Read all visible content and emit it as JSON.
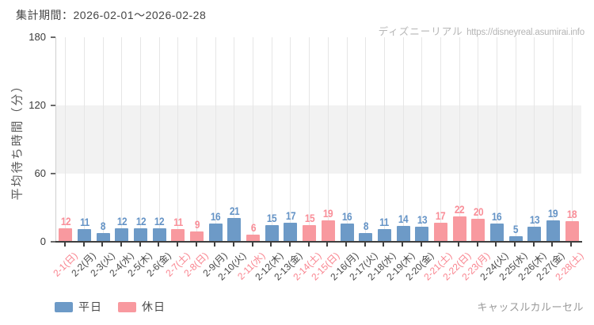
{
  "header": {
    "period_label": "集計期間：2026-02-01～2026-02-28",
    "watermark": {
      "site": "ディズニーリアル",
      "url": "https://disneyreal.asumirai.info"
    }
  },
  "chart_data": {
    "type": "bar",
    "title": "",
    "xlabel": "",
    "ylabel": "平均待ち時間（分）",
    "ylim": [
      0,
      180
    ],
    "yticks": [
      0,
      60,
      120,
      180
    ],
    "shaded_band": [
      60,
      120
    ],
    "grid": true,
    "legend_position": "bottom-left",
    "categories": [
      "2-1(日)",
      "2-2(月)",
      "2-3(火)",
      "2-4(水)",
      "2-5(木)",
      "2-6(金)",
      "2-7(土)",
      "2-8(日)",
      "2-9(月)",
      "2-10(火)",
      "2-11(水)",
      "2-12(木)",
      "2-13(金)",
      "2-14(土)",
      "2-15(日)",
      "2-16(月)",
      "2-17(火)",
      "2-18(水)",
      "2-19(木)",
      "2-20(金)",
      "2-21(土)",
      "2-22(日)",
      "2-23(月)",
      "2-24(火)",
      "2-25(水)",
      "2-26(木)",
      "2-27(金)",
      "2-28(土)"
    ],
    "values": [
      12,
      11,
      8,
      12,
      12,
      12,
      11,
      9,
      16,
      21,
      6,
      15,
      17,
      15,
      19,
      16,
      8,
      11,
      14,
      13,
      17,
      22,
      20,
      16,
      5,
      13,
      19,
      18
    ],
    "day_types": [
      "holiday",
      "weekday",
      "weekday",
      "weekday",
      "weekday",
      "weekday",
      "holiday",
      "holiday",
      "weekday",
      "weekday",
      "holiday",
      "weekday",
      "weekday",
      "holiday",
      "holiday",
      "weekday",
      "weekday",
      "weekday",
      "weekday",
      "weekday",
      "holiday",
      "holiday",
      "holiday",
      "weekday",
      "weekday",
      "weekday",
      "weekday",
      "holiday"
    ],
    "legend": [
      {
        "key": "weekday",
        "label": "平日"
      },
      {
        "key": "holiday",
        "label": "休日"
      }
    ],
    "colors": {
      "weekday_bar": "#6d9ac7",
      "holiday_bar": "#f8999f",
      "weekday_value_label": "#6493c6",
      "holiday_value_label": "#f98e98",
      "weekday_tick_label": "#474747",
      "holiday_tick_label": "#f9848f",
      "band": "#f2f2f2",
      "gridline": "#e6e6e6",
      "axis": "#3f3f3f"
    }
  },
  "footer": {
    "attraction": "キャッスルカルーセル"
  }
}
